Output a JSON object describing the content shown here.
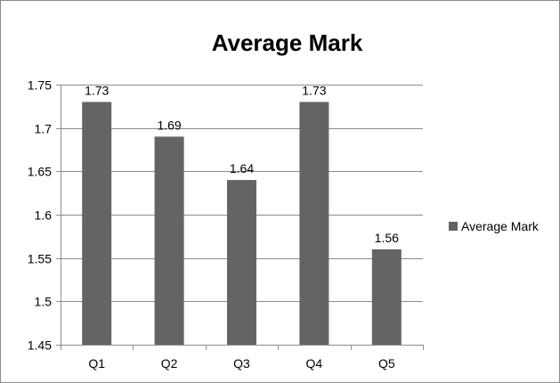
{
  "chart_data": {
    "type": "bar",
    "title": "Average Mark",
    "categories": [
      "Q1",
      "Q2",
      "Q3",
      "Q4",
      "Q5"
    ],
    "series": [
      {
        "name": "Average Mark",
        "values": [
          1.73,
          1.69,
          1.64,
          1.73,
          1.56
        ],
        "data_labels": [
          "1.73",
          "1.69",
          "1.64",
          "1.73",
          "1.56"
        ],
        "color": "#646464"
      }
    ],
    "ylim": [
      1.45,
      1.75
    ],
    "y_ticks": [
      "1.75",
      "1.7",
      "1.65",
      "1.6",
      "1.55",
      "1.5",
      "1.45"
    ],
    "y_tick_values": [
      1.75,
      1.7,
      1.65,
      1.6,
      1.55,
      1.5,
      1.45
    ],
    "grid": true,
    "legend_position": "right",
    "xlabel": "",
    "ylabel": ""
  }
}
